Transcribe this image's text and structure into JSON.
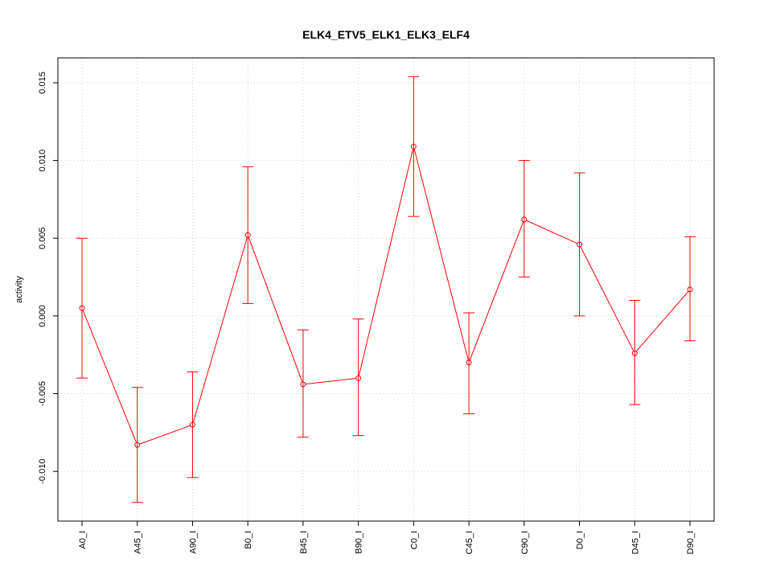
{
  "chart_data": {
    "type": "line",
    "title": "ELK4_ETV5_ELK1_ELK3_ELF4",
    "xlabel": "",
    "ylabel": "activity",
    "categories": [
      "A0_I",
      "A45_I",
      "A90_I",
      "B0_I",
      "B45_I",
      "B90_I",
      "C0_I",
      "C45_I",
      "C90_I",
      "D0_I",
      "D45_I",
      "D90_I"
    ],
    "values": [
      0.0005,
      -0.0083,
      -0.007,
      0.0052,
      -0.0044,
      -0.004,
      0.0109,
      -0.003,
      0.0062,
      0.0046,
      -0.0024,
      0.0017
    ],
    "error_upper": [
      0.005,
      -0.0046,
      -0.0036,
      0.0096,
      -0.0009,
      -0.0002,
      0.0154,
      0.0002,
      0.01,
      0.0092,
      0.001,
      0.0051
    ],
    "error_lower": [
      -0.004,
      -0.012,
      -0.0104,
      0.0008,
      -0.0078,
      -0.0077,
      0.0064,
      -0.0063,
      0.0025,
      0.0,
      -0.0057,
      -0.0016
    ],
    "yticks": [
      -0.01,
      -0.005,
      0.0,
      0.005,
      0.01,
      0.015
    ],
    "ytick_labels": [
      "-0.010",
      "-0.005",
      "0.000",
      "0.005",
      "0.010",
      "0.015"
    ],
    "ylim": [
      -0.0132,
      0.0166
    ],
    "grid": true,
    "colors": {
      "series": "#ff0000",
      "grid": "#d3d3d3",
      "axis": "#000000"
    }
  }
}
